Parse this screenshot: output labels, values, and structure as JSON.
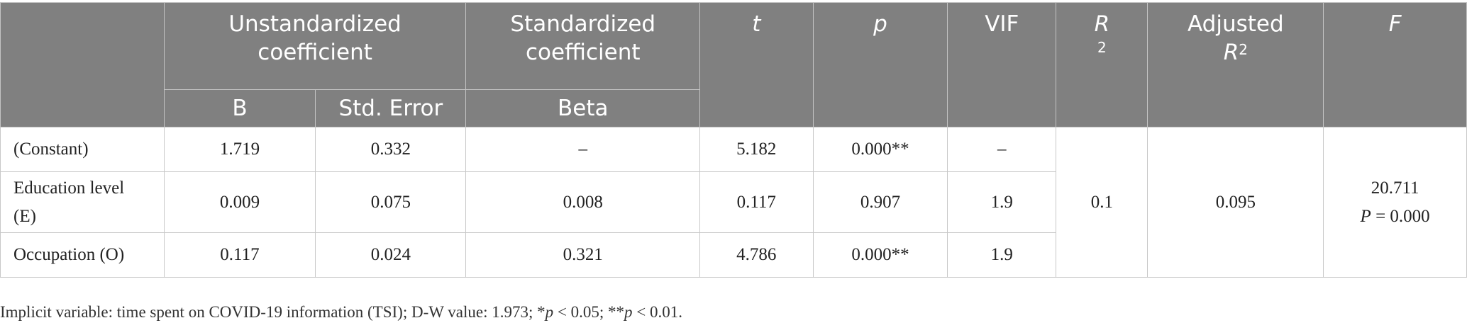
{
  "header": {
    "unstd": "Unstandardized coefficient",
    "std": "Standardized coefficient",
    "t": "t",
    "p": "p",
    "vif": "VIF",
    "r2_base": "R",
    "r2_exp": "2",
    "adj_line1": "Adjusted",
    "adj_base": "R",
    "adj_exp": "2",
    "f": "F",
    "b": "B",
    "se": "Std. Error",
    "beta": "Beta"
  },
  "rows": [
    {
      "label": "(Constant)",
      "b": "1.719",
      "se": "0.332",
      "beta": "–",
      "t": "5.182",
      "p": "0.000**",
      "vif": "–"
    },
    {
      "label_line1": "Education level",
      "label_line2": "(E)",
      "b": "0.009",
      "se": "0.075",
      "beta": "0.008",
      "t": "0.117",
      "p": "0.907",
      "vif": "1.9"
    },
    {
      "label": "Occupation (O)",
      "b": "0.117",
      "se": "0.024",
      "beta": "0.321",
      "t": "4.786",
      "p": "0.000**",
      "vif": "1.9"
    }
  ],
  "model": {
    "r2": "0.1",
    "adj_r2": "0.095",
    "f": "20.711",
    "f_p_label": "P",
    "f_p_value": " = 0.000"
  },
  "note": {
    "text1": "Implicit variable: time spent on COVID-19 information (TSI); D-W value: 1.973; *",
    "p1": "p",
    "text2": " < 0.05; **",
    "p2": "p",
    "text3": " < 0.01."
  }
}
